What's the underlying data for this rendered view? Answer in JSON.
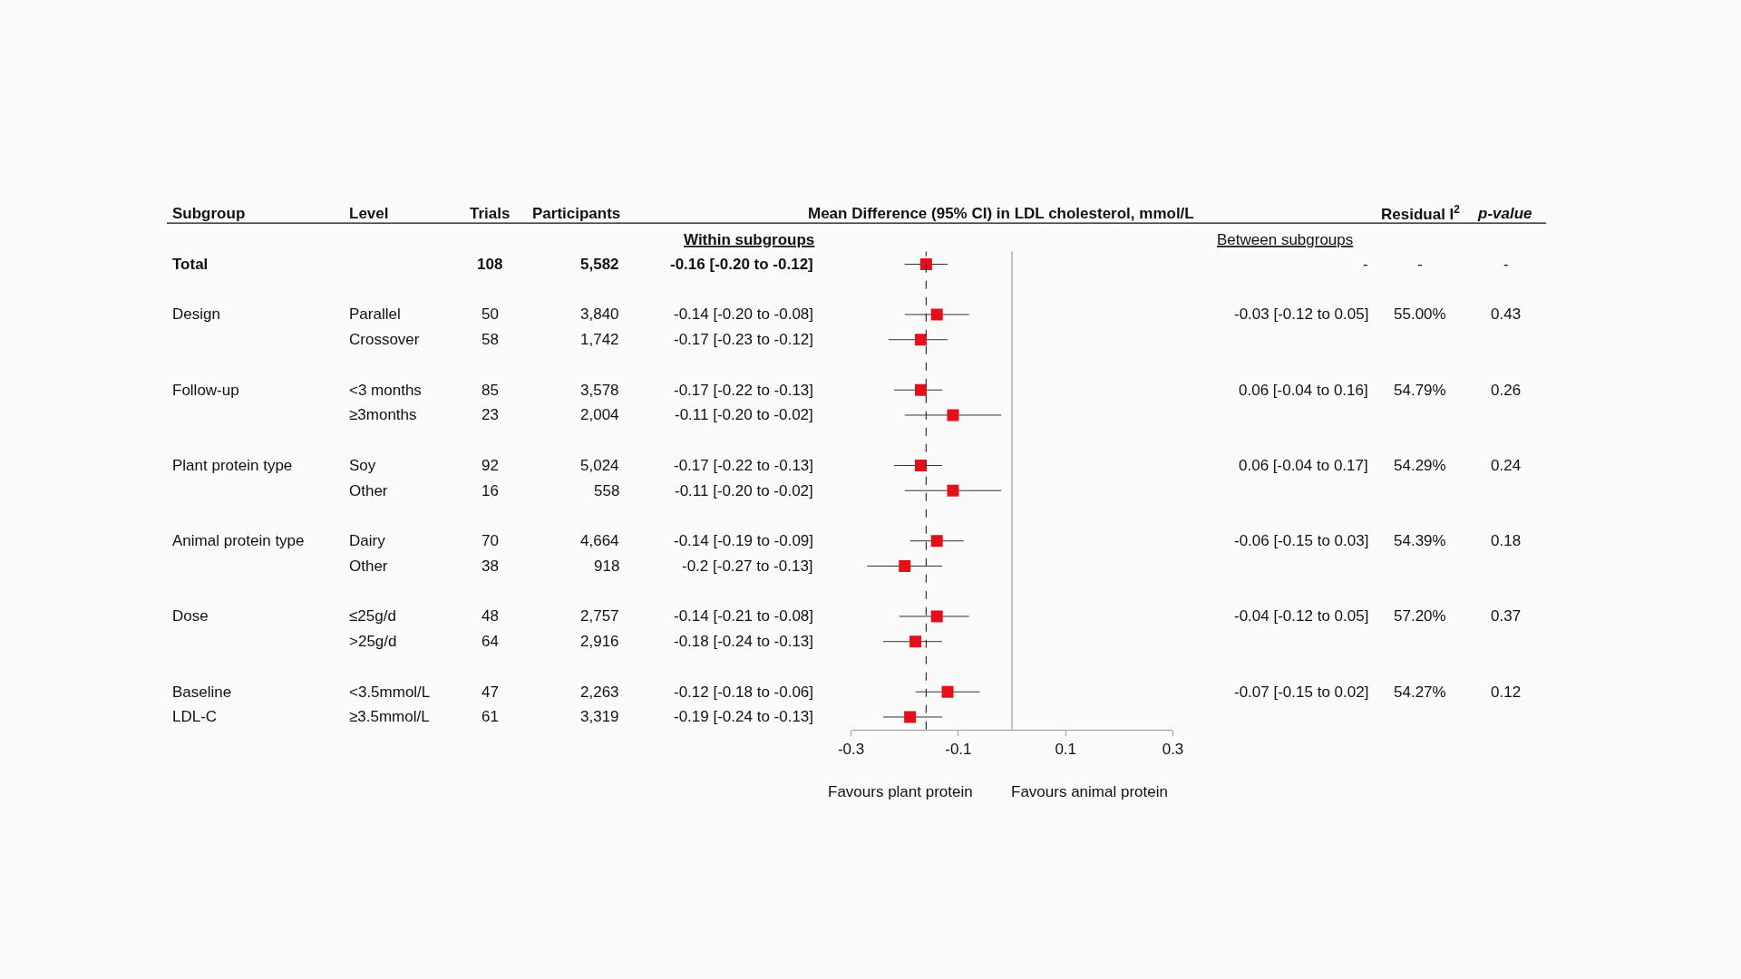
{
  "chart_data": [
    {
      "type": "other",
      "title": "Subgroup",
      "categories": [
        "Total",
        null,
        "Design",
        null,
        null,
        "Follow-up",
        null,
        null,
        "Plant protein type",
        null,
        null,
        "Animal protein type",
        null,
        null,
        "Dose",
        null,
        null,
        "Baseline",
        "LDL-C"
      ]
    },
    {
      "type": "other",
      "title": "Level",
      "categories": [
        null,
        null,
        "Parallel",
        "Crossover",
        null,
        "<3 months",
        "≥3months",
        null,
        "Soy",
        "Other",
        null,
        "Dairy",
        "Other",
        null,
        "≤25g/d",
        ">25g/d",
        null,
        "<3.5mmol/L",
        "≥3.5mmol/L"
      ]
    },
    {
      "type": "other",
      "title": "Trials",
      "categories": [
        "108",
        null,
        "50",
        "58",
        null,
        "85",
        "23",
        null,
        "92",
        "16",
        null,
        "70",
        "38",
        null,
        "48",
        "64",
        null,
        "47",
        "61"
      ]
    },
    {
      "type": "other",
      "title": "Participants",
      "categories": [
        "5,582",
        null,
        "3,840",
        "1,742",
        null,
        "3,578",
        "2,004",
        null,
        "5,024",
        "558",
        null,
        "4,664",
        "918",
        null,
        "2,757",
        "2,916",
        null,
        "2,263",
        "3,319"
      ]
    },
    {
      "type": "scatter",
      "orientation": "horizontal",
      "title": "Mean Difference (95% CI) in LDL cholesterol, mmol/L",
      "categories": [
        null,
        null,
        null,
        null,
        null,
        null,
        null,
        null,
        null,
        null,
        null,
        null,
        null,
        null,
        null,
        null,
        null,
        null,
        null
      ],
      "values": [
        -0.16,
        null,
        -0.14,
        -0.17,
        null,
        -0.17,
        -0.11,
        null,
        -0.17,
        -0.11,
        null,
        -0.14,
        -0.2,
        null,
        -0.14,
        -0.18,
        null,
        -0.12,
        -0.19
      ],
      "errors": [
        [
          -0.2,
          -0.12
        ],
        null,
        [
          -0.2,
          -0.08
        ],
        [
          -0.23,
          -0.12
        ],
        null,
        [
          -0.22,
          -0.13
        ],
        [
          -0.2,
          -0.02
        ],
        null,
        [
          -0.22,
          -0.13
        ],
        [
          -0.2,
          -0.02
        ],
        null,
        [
          -0.19,
          -0.09
        ],
        [
          -0.27,
          -0.13
        ],
        null,
        [
          -0.21,
          -0.08
        ],
        [
          -0.24,
          -0.13
        ],
        null,
        [
          -0.18,
          -0.06
        ],
        [
          -0.24,
          -0.13
        ]
      ],
      "value_labels": [
        "-0.16 [-0.20 to -0.12]",
        null,
        "-0.14 [-0.20 to -0.08]",
        "-0.17 [-0.23 to -0.12]",
        null,
        "-0.17 [-0.22 to -0.13]",
        "-0.11 [-0.20 to -0.02]",
        null,
        "-0.17 [-0.22 to -0.13]",
        "-0.11 [-0.20 to -0.02]",
        null,
        "-0.14 [-0.19 to -0.09]",
        "-0.2 [-0.27 to -0.13]",
        null,
        "-0.14 [-0.21 to -0.08]",
        "-0.18 [-0.24 to -0.13]",
        null,
        "-0.12 [-0.18 to -0.06]",
        "-0.19 [-0.24 to -0.13]"
      ],
      "color": "#e3101a",
      "marker": "square",
      "xlim": [
        -0.3,
        0.3
      ],
      "xticks": [
        -0.3,
        -0.1,
        0.1,
        0.3
      ],
      "ref_lines": [
        {
          "axis": "x",
          "value": -0.16,
          "line_style": "dashed",
          "color": "#333333"
        },
        {
          "axis": "x",
          "value": 0,
          "line_style": "solid",
          "color": "#999999"
        }
      ],
      "annotations": [
        "Within subgroups",
        "Favours plant protein",
        "Favours animal protein"
      ]
    },
    {
      "type": "other",
      "title": "Between subgroups",
      "categories": [
        "-",
        null,
        "-0.03 [-0.12 to 0.05]",
        null,
        null,
        "0.06 [-0.04 to 0.16]",
        null,
        null,
        "0.06 [-0.04 to 0.17]",
        null,
        null,
        "-0.06 [-0.15 to 0.03]",
        null,
        null,
        "-0.04 [-0.12 to 0.05]",
        null,
        null,
        "-0.07 [-0.15 to 0.02]",
        null
      ]
    },
    {
      "type": "other",
      "title": "Residual I$^{2}$",
      "categories": [
        "-",
        null,
        "55.00%",
        null,
        null,
        "54.79%",
        null,
        null,
        "54.29%",
        null,
        null,
        "54.39%",
        null,
        null,
        "57.20%",
        null,
        null,
        "54.27%",
        null
      ]
    },
    {
      "type": "other",
      "title": "p-value",
      "categories": [
        "-",
        null,
        "0.43",
        null,
        null,
        "0.26",
        null,
        null,
        "0.24",
        null,
        null,
        "0.18",
        null,
        null,
        "0.37",
        null,
        null,
        "0.12",
        null
      ]
    }
  ]
}
